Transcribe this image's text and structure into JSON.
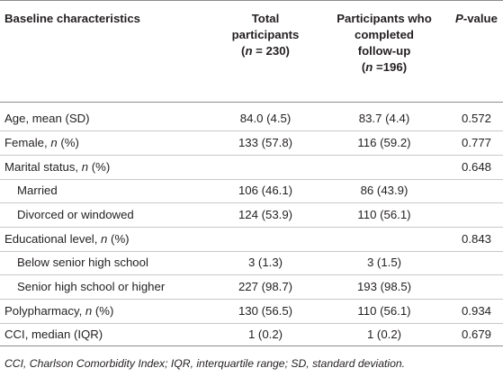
{
  "table": {
    "headers": {
      "characteristic": "Baseline characteristics",
      "total": [
        "Total",
        "participants",
        "(n = 230)"
      ],
      "completed": [
        "Participants who",
        "completed",
        "follow-up",
        "(n =196)"
      ],
      "pvalue": "P-value"
    },
    "rows": [
      {
        "label": "Age, mean (SD)",
        "total": "84.0 (4.5)",
        "completed": "83.7 (4.4)",
        "p": "0.572",
        "indent": false
      },
      {
        "label": "Female, n (%)",
        "total": "133 (57.8)",
        "completed": "116 (59.2)",
        "p": "0.777",
        "indent": false
      },
      {
        "label": "Marital status, n (%)",
        "total": "",
        "completed": "",
        "p": "0.648",
        "indent": false
      },
      {
        "label": "Married",
        "total": "106 (46.1)",
        "completed": "86 (43.9)",
        "p": "",
        "indent": true
      },
      {
        "label": "Divorced or windowed",
        "total": "124 (53.9)",
        "completed": "110 (56.1)",
        "p": "",
        "indent": true
      },
      {
        "label": "Educational level, n (%)",
        "total": "",
        "completed": "",
        "p": "0.843",
        "indent": false
      },
      {
        "label": "Below senior high school",
        "total": "3 (1.3)",
        "completed": "3 (1.5)",
        "p": "",
        "indent": true
      },
      {
        "label": "Senior high school or higher",
        "total": "227 (98.7)",
        "completed": "193 (98.5)",
        "p": "",
        "indent": true
      },
      {
        "label": "Polypharmacy, n (%)",
        "total": "130 (56.5)",
        "completed": "110 (56.1)",
        "p": "0.934",
        "indent": false
      },
      {
        "label": "CCI, median (IQR)",
        "total": "1 (0.2)",
        "completed": "1 (0.2)",
        "p": "0.679",
        "indent": false
      }
    ]
  },
  "footnote": "CCI, Charlson Comorbidity Index; IQR, interquartile range; SD, standard deviation."
}
